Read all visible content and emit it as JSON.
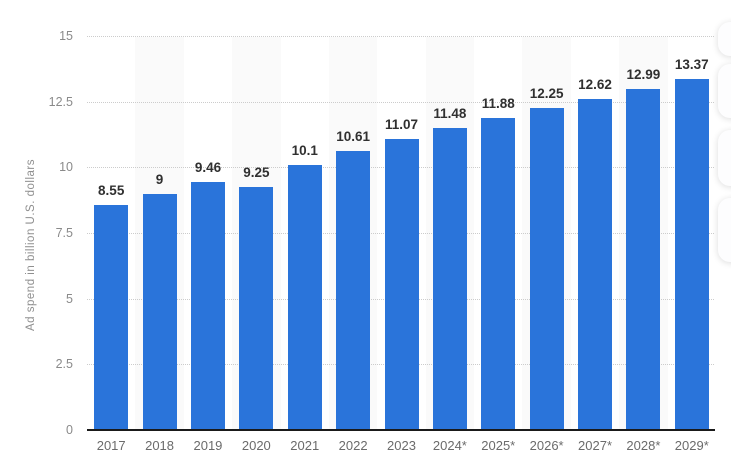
{
  "page": {
    "background": "#ffffff"
  },
  "chart_data": {
    "type": "bar",
    "title": "",
    "xlabel": "",
    "ylabel": "Ad spend in billion U.S. dollars",
    "categories": [
      "2017",
      "2018",
      "2019",
      "2020",
      "2021",
      "2022",
      "2023",
      "2024*",
      "2025*",
      "2026*",
      "2027*",
      "2028*",
      "2029*"
    ],
    "values": [
      8.55,
      9,
      9.46,
      9.25,
      10.1,
      10.61,
      11.07,
      11.48,
      11.88,
      12.25,
      12.62,
      12.99,
      13.37
    ],
    "value_labels": [
      "8.55",
      "9",
      "9.46",
      "9.25",
      "10.1",
      "10.61",
      "11.07",
      "11.48",
      "11.88",
      "12.25",
      "12.62",
      "12.99",
      "13.37"
    ],
    "ylim": [
      0,
      15
    ],
    "ytick_values": [
      0,
      2.5,
      5,
      7.5,
      10,
      12.5,
      15
    ],
    "ytick_labels": [
      "0",
      "2.5",
      "5",
      "7.5",
      "10",
      "12.5",
      "15"
    ],
    "grid": "horizontal-dotted",
    "legend": "none",
    "stripes": "alternating-vertical",
    "colors": {
      "bar": "#2a74da",
      "stripe": "#fafafa",
      "gridline": "#cccccc",
      "axis_line": "#1a1a1a",
      "value_label": "#303030",
      "tick_label": "#8a8a8a",
      "category_label": "#6b6b6b",
      "axis_title": "#8f8f8f"
    }
  }
}
